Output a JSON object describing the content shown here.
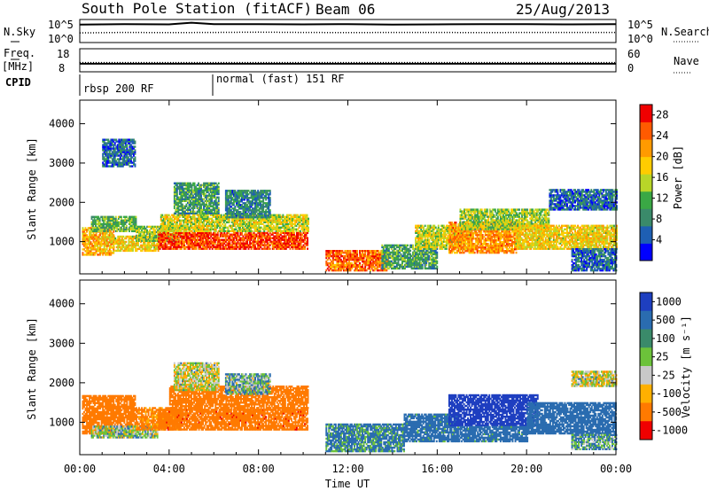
{
  "header": {
    "station": "South Pole Station (fitACF)",
    "beam": "Beam 06",
    "date": "25/Aug/2013"
  },
  "left_labels": {
    "nsky": "N.Sky",
    "freq": "Freq.",
    "freq_unit": "[MHz]",
    "cpid": "CPID"
  },
  "right_labels": {
    "nsearch": "N.Search",
    "nave": "Nave"
  },
  "cpid_segments": [
    {
      "label": "rbsp 200 RF",
      "start_hour": 0
    },
    {
      "label": "normal (fast) 151 RF",
      "start_hour": 6
    }
  ],
  "colors": {
    "power_scale": [
      "#0000ff",
      "#1e5fb3",
      "#3a8a6a",
      "#3aa845",
      "#b8d628",
      "#ffcc00",
      "#ff9a00",
      "#ff5a00",
      "#f00000"
    ],
    "velocity_scale": [
      "#1e3fc0",
      "#2a6cb0",
      "#3a8a6a",
      "#6cc23a",
      "#c8c8c8",
      "#ffb000",
      "#ff7a00",
      "#f00000"
    ]
  },
  "chart_data": [
    {
      "type": "line",
      "name": "noise-panel",
      "left_axis": {
        "label": "N.Sky",
        "ticks": [
          "10^5",
          "10^0"
        ]
      },
      "right_axis": {
        "label": "N.Search",
        "ticks": [
          "10^5",
          "10^0"
        ]
      },
      "xlim": [
        0,
        24
      ],
      "series": [
        {
          "name": "N.Sky",
          "style": "solid",
          "x": [
            0,
            2,
            4,
            5,
            6,
            8,
            10,
            12,
            14,
            16,
            18,
            20,
            22,
            24
          ],
          "y": [
            0.78,
            0.8,
            0.79,
            0.86,
            0.8,
            0.8,
            0.79,
            0.8,
            0.78,
            0.79,
            0.8,
            0.8,
            0.79,
            0.8
          ]
        },
        {
          "name": "N.Search",
          "style": "dotted",
          "x": [
            0,
            2,
            4,
            6,
            8,
            10,
            12,
            14,
            16,
            18,
            20,
            22,
            24
          ],
          "y": [
            0.42,
            0.44,
            0.43,
            0.44,
            0.45,
            0.44,
            0.43,
            0.44,
            0.44,
            0.43,
            0.44,
            0.44,
            0.44
          ]
        }
      ]
    },
    {
      "type": "line",
      "name": "freq-nave-panel",
      "left_axis": {
        "ticks": [
          "18",
          "8"
        ]
      },
      "right_axis": {
        "label": "Nave",
        "ticks": [
          "60",
          "0"
        ]
      },
      "xlim": [
        0,
        24
      ],
      "series": [
        {
          "name": "Freq",
          "style": "solid",
          "x": [
            0,
            24
          ],
          "y": [
            11.5,
            11.5
          ]
        },
        {
          "name": "Nave",
          "style": "dotted",
          "x": [
            0,
            24
          ],
          "y": [
            24,
            24
          ]
        }
      ]
    },
    {
      "type": "heatmap",
      "name": "power-panel",
      "ylabel": "Slant Range [km]",
      "yticks": [
        "1000",
        "2000",
        "3000",
        "4000"
      ],
      "ylim": [
        180,
        4600
      ],
      "xlim": [
        0,
        24
      ],
      "colorbar": {
        "label": "Power [dB]",
        "ticks": [
          "4",
          "8",
          "12",
          "16",
          "20",
          "24",
          "28"
        ],
        "range": [
          0,
          30
        ]
      },
      "patches": [
        {
          "t0": 0.1,
          "t1": 1.5,
          "r0": 650,
          "r1": 1350,
          "value": 20
        },
        {
          "t0": 0.5,
          "t1": 2.5,
          "r0": 1250,
          "r1": 1650,
          "value": 12
        },
        {
          "t0": 1.5,
          "t1": 3.5,
          "r0": 750,
          "r1": 1150,
          "value": 18
        },
        {
          "t0": 2.5,
          "t1": 4.5,
          "r0": 1000,
          "r1": 1400,
          "value": 14
        },
        {
          "t0": 3.5,
          "t1": 10.2,
          "r0": 800,
          "r1": 1250,
          "value": 26
        },
        {
          "t0": 3.6,
          "t1": 10.2,
          "r0": 1250,
          "r1": 1700,
          "value": 16
        },
        {
          "t0": 4.2,
          "t1": 6.2,
          "r0": 1700,
          "r1": 2500,
          "value": 10
        },
        {
          "t0": 6.5,
          "t1": 8.5,
          "r0": 1600,
          "r1": 2300,
          "value": 8
        },
        {
          "t0": 1.0,
          "t1": 2.5,
          "r0": 2900,
          "r1": 3600,
          "value": 6
        },
        {
          "t0": 11.0,
          "t1": 13.8,
          "r0": 250,
          "r1": 750,
          "value": 24
        },
        {
          "t0": 13.5,
          "t1": 16.0,
          "r0": 300,
          "r1": 900,
          "value": 10
        },
        {
          "t0": 15.0,
          "t1": 17.5,
          "r0": 800,
          "r1": 1400,
          "value": 16
        },
        {
          "t0": 16.5,
          "t1": 19.5,
          "r0": 700,
          "r1": 1500,
          "value": 22
        },
        {
          "t0": 17.0,
          "t1": 21.0,
          "r0": 1300,
          "r1": 1800,
          "value": 14
        },
        {
          "t0": 19.5,
          "t1": 24.0,
          "r0": 800,
          "r1": 1400,
          "value": 18
        },
        {
          "t0": 21.0,
          "t1": 24.0,
          "r0": 1800,
          "r1": 2300,
          "value": 6
        },
        {
          "t0": 22.0,
          "t1": 24.0,
          "r0": 250,
          "r1": 800,
          "value": 6
        }
      ]
    },
    {
      "type": "heatmap",
      "name": "velocity-panel",
      "ylabel": "Slant Range [km]",
      "yticks": [
        "1000",
        "2000",
        "3000",
        "4000"
      ],
      "ylim": [
        180,
        4600
      ],
      "xlabel": "Time UT",
      "xticks": [
        "00:00",
        "04:00",
        "08:00",
        "12:00",
        "16:00",
        "20:00",
        "00:00"
      ],
      "xlim": [
        0,
        24
      ],
      "colorbar": {
        "label": "Velocity [m s⁻¹]",
        "ticks": [
          "1000",
          "500",
          "100",
          "25",
          "-25",
          "-100",
          "-500",
          "-1000"
        ],
        "range": [
          -1000,
          1000
        ]
      },
      "patches": [
        {
          "t0": 0.1,
          "t1": 2.5,
          "r0": 700,
          "r1": 1650,
          "value": -300
        },
        {
          "t0": 0.5,
          "t1": 3.5,
          "r0": 600,
          "r1": 900,
          "value": 50
        },
        {
          "t0": 2.5,
          "t1": 4.5,
          "r0": 800,
          "r1": 1350,
          "value": -150
        },
        {
          "t0": 3.5,
          "t1": 10.2,
          "r0": 800,
          "r1": 1300,
          "value": -400
        },
        {
          "t0": 4.0,
          "t1": 10.2,
          "r0": 1300,
          "r1": 1900,
          "value": -250
        },
        {
          "t0": 4.2,
          "t1": 6.2,
          "r0": 1800,
          "r1": 2500,
          "value": 0
        },
        {
          "t0": 6.5,
          "t1": 8.5,
          "r0": 1700,
          "r1": 2200,
          "value": 80
        },
        {
          "t0": 11.0,
          "t1": 14.5,
          "r0": 250,
          "r1": 950,
          "value": 150
        },
        {
          "t0": 14.5,
          "t1": 17.0,
          "r0": 500,
          "r1": 1200,
          "value": 200
        },
        {
          "t0": 16.5,
          "t1": 20.5,
          "r0": 900,
          "r1": 1700,
          "value": 700
        },
        {
          "t0": 17.0,
          "t1": 20.0,
          "r0": 500,
          "r1": 900,
          "value": 200
        },
        {
          "t0": 20.0,
          "t1": 24.0,
          "r0": 700,
          "r1": 1500,
          "value": 250
        },
        {
          "t0": 22.0,
          "t1": 24.0,
          "r0": 1900,
          "r1": 2300,
          "value": 0
        },
        {
          "t0": 22.0,
          "t1": 24.0,
          "r0": 300,
          "r1": 700,
          "value": 100
        }
      ]
    }
  ]
}
